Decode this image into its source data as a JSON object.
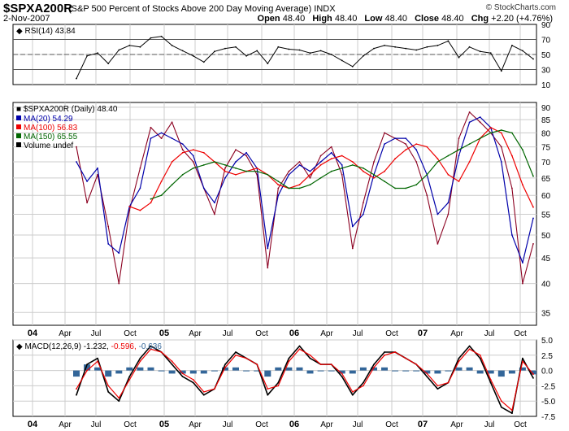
{
  "header": {
    "symbol": "$SPXA200R",
    "description": "(S&P 500 Percent of Stocks Above 200 Day Moving Average) INDX",
    "brand": "© StockCharts.com",
    "date": "2-Nov-2007",
    "open_label": "Open",
    "open": "48.40",
    "high_label": "High",
    "high": "48.40",
    "low_label": "Low",
    "low": "48.40",
    "close_label": "Close",
    "close": "48.40",
    "chg_label": "Chg",
    "chg": "+2.20 (+4.76%)"
  },
  "colors": {
    "price": "#8b0020",
    "ma20": "#0000aa",
    "ma100": "#ee0000",
    "ma150": "#006600",
    "rsi": "#000000",
    "macd_line": "#000000",
    "macd_signal": "#ee0000",
    "histogram": "#336699",
    "grid": "#cccccc"
  },
  "chart_data": [
    {
      "type": "line",
      "name": "rsi_panel",
      "title": "RSI(14) 43.84",
      "ylim": [
        10,
        90
      ],
      "yticks": [
        10,
        30,
        50,
        70,
        90
      ],
      "reference_lines": [
        30,
        50,
        70
      ],
      "series": [
        {
          "name": "RSI(14)",
          "x": [
            "2004-04",
            "2004-05",
            "2004-06",
            "2004-07",
            "2004-08",
            "2004-09",
            "2004-10",
            "2004-11",
            "2004-12",
            "2005-01",
            "2005-02",
            "2005-03",
            "2005-04",
            "2005-05",
            "2005-06",
            "2005-07",
            "2005-08",
            "2005-09",
            "2005-10",
            "2005-11",
            "2005-12",
            "2006-01",
            "2006-02",
            "2006-03",
            "2006-04",
            "2006-05",
            "2006-06",
            "2006-07",
            "2006-08",
            "2006-09",
            "2006-10",
            "2006-11",
            "2006-12",
            "2007-01",
            "2007-02",
            "2007-03",
            "2007-04",
            "2007-05",
            "2007-06",
            "2007-07",
            "2007-08",
            "2007-09",
            "2007-10",
            "2007-11"
          ],
          "values": [
            18,
            48,
            52,
            38,
            56,
            62,
            60,
            72,
            74,
            62,
            55,
            48,
            40,
            54,
            58,
            60,
            48,
            55,
            38,
            60,
            57,
            56,
            52,
            55,
            50,
            42,
            34,
            48,
            58,
            62,
            60,
            58,
            56,
            60,
            62,
            68,
            46,
            60,
            54,
            52,
            28,
            62,
            55,
            44
          ]
        }
      ]
    },
    {
      "type": "line",
      "name": "price_panel",
      "title": "$SPXA200R (Daily) 48.40",
      "ylim": [
        33,
        92
      ],
      "yscale": "log",
      "yticks": [
        35,
        40,
        45,
        50,
        55,
        60,
        65,
        70,
        75,
        80,
        85,
        90
      ],
      "legend": [
        "MA(20) 54.29",
        "MA(100) 56.83",
        "MA(150) 65.55",
        "Volume undef"
      ],
      "series": [
        {
          "name": "$SPXA200R",
          "x": [
            "2004-04",
            "2004-05",
            "2004-06",
            "2004-07",
            "2004-08",
            "2004-09",
            "2004-10",
            "2004-11",
            "2004-12",
            "2005-01",
            "2005-02",
            "2005-03",
            "2005-04",
            "2005-05",
            "2005-06",
            "2005-07",
            "2005-08",
            "2005-09",
            "2005-10",
            "2005-11",
            "2005-12",
            "2006-01",
            "2006-02",
            "2006-03",
            "2006-04",
            "2006-05",
            "2006-06",
            "2006-07",
            "2006-08",
            "2006-09",
            "2006-10",
            "2006-11",
            "2006-12",
            "2007-01",
            "2007-02",
            "2007-03",
            "2007-04",
            "2007-05",
            "2007-06",
            "2007-07",
            "2007-08",
            "2007-09",
            "2007-10",
            "2007-11"
          ],
          "values": [
            75,
            58,
            66,
            52,
            40,
            56,
            68,
            82,
            78,
            84,
            74,
            70,
            62,
            55,
            68,
            74,
            72,
            66,
            43,
            62,
            67,
            70,
            65,
            72,
            75,
            66,
            47,
            58,
            70,
            80,
            78,
            76,
            70,
            60,
            48,
            55,
            78,
            88,
            84,
            80,
            75,
            62,
            40,
            48
          ]
        },
        {
          "name": "MA(20)",
          "x": [
            "2004-04",
            "2004-05",
            "2004-06",
            "2004-07",
            "2004-08",
            "2004-09",
            "2004-10",
            "2004-11",
            "2004-12",
            "2005-01",
            "2005-02",
            "2005-03",
            "2005-04",
            "2005-05",
            "2005-06",
            "2005-07",
            "2005-08",
            "2005-09",
            "2005-10",
            "2005-11",
            "2005-12",
            "2006-01",
            "2006-02",
            "2006-03",
            "2006-04",
            "2006-05",
            "2006-06",
            "2006-07",
            "2006-08",
            "2006-09",
            "2006-10",
            "2006-11",
            "2006-12",
            "2007-01",
            "2007-02",
            "2007-03",
            "2007-04",
            "2007-05",
            "2007-06",
            "2007-07",
            "2007-08",
            "2007-09",
            "2007-10",
            "2007-11"
          ],
          "values": [
            70,
            64,
            68,
            48,
            46,
            57,
            62,
            78,
            80,
            78,
            76,
            72,
            62,
            58,
            65,
            70,
            73,
            68,
            47,
            60,
            66,
            69,
            67,
            70,
            73,
            69,
            52,
            55,
            66,
            76,
            78,
            78,
            74,
            66,
            55,
            58,
            72,
            84,
            86,
            82,
            70,
            50,
            44,
            54
          ]
        },
        {
          "name": "MA(100)",
          "x": [
            "2004-04",
            "2004-05",
            "2004-06",
            "2004-07",
            "2004-08",
            "2004-09",
            "2004-10",
            "2004-11",
            "2004-12",
            "2005-01",
            "2005-02",
            "2005-03",
            "2005-04",
            "2005-05",
            "2005-06",
            "2005-07",
            "2005-08",
            "2005-09",
            "2005-10",
            "2005-11",
            "2005-12",
            "2006-01",
            "2006-02",
            "2006-03",
            "2006-04",
            "2006-05",
            "2006-06",
            "2006-07",
            "2006-08",
            "2006-09",
            "2006-10",
            "2006-11",
            "2006-12",
            "2007-01",
            "2007-02",
            "2007-03",
            "2007-04",
            "2007-05",
            "2007-06",
            "2007-07",
            "2007-08",
            "2007-09",
            "2007-10",
            "2007-11"
          ],
          "values": [
            null,
            null,
            null,
            null,
            null,
            57,
            56,
            58,
            64,
            70,
            73,
            74,
            73,
            70,
            67,
            66,
            67,
            68,
            66,
            63,
            62,
            63,
            66,
            69,
            71,
            72,
            70,
            67,
            65,
            67,
            71,
            74,
            76,
            75,
            71,
            66,
            64,
            70,
            78,
            82,
            80,
            72,
            63,
            56.83
          ]
        },
        {
          "name": "MA(150)",
          "x": [
            "2004-04",
            "2004-05",
            "2004-06",
            "2004-07",
            "2004-08",
            "2004-09",
            "2004-10",
            "2004-11",
            "2004-12",
            "2005-01",
            "2005-02",
            "2005-03",
            "2005-04",
            "2005-05",
            "2005-06",
            "2005-07",
            "2005-08",
            "2005-09",
            "2005-10",
            "2005-11",
            "2005-12",
            "2006-01",
            "2006-02",
            "2006-03",
            "2006-04",
            "2006-05",
            "2006-06",
            "2006-07",
            "2006-08",
            "2006-09",
            "2006-10",
            "2006-11",
            "2006-12",
            "2007-01",
            "2007-02",
            "2007-03",
            "2007-04",
            "2007-05",
            "2007-06",
            "2007-07",
            "2007-08",
            "2007-09",
            "2007-10",
            "2007-11"
          ],
          "values": [
            null,
            null,
            null,
            null,
            null,
            null,
            null,
            59,
            60,
            63,
            66,
            68,
            69,
            70,
            69,
            68,
            67,
            67,
            66,
            64,
            62,
            62,
            63,
            65,
            67,
            68,
            69,
            68,
            66,
            64,
            62,
            62,
            63,
            66,
            70,
            72,
            74,
            76,
            78,
            80,
            81,
            80,
            74,
            65.55
          ]
        }
      ]
    },
    {
      "type": "line",
      "name": "macd_panel",
      "title": "MACD(12,26,9)",
      "title_values": [
        "-1.232",
        "-0.596",
        "-0.636"
      ],
      "ylim": [
        -7.5,
        5.0
      ],
      "yticks": [
        -7.5,
        -5.0,
        -2.5,
        0.0,
        2.5,
        5.0
      ],
      "series": [
        {
          "name": "MACD",
          "x": [
            "2004-04",
            "2004-05",
            "2004-06",
            "2004-07",
            "2004-08",
            "2004-09",
            "2004-10",
            "2004-11",
            "2004-12",
            "2005-01",
            "2005-02",
            "2005-03",
            "2005-04",
            "2005-05",
            "2005-06",
            "2005-07",
            "2005-08",
            "2005-09",
            "2005-10",
            "2005-11",
            "2005-12",
            "2006-01",
            "2006-02",
            "2006-03",
            "2006-04",
            "2006-05",
            "2006-06",
            "2006-07",
            "2006-08",
            "2006-09",
            "2006-10",
            "2006-11",
            "2006-12",
            "2007-01",
            "2007-02",
            "2007-03",
            "2007-04",
            "2007-05",
            "2007-06",
            "2007-07",
            "2007-08",
            "2007-09",
            "2007-10",
            "2007-11"
          ],
          "values": [
            -4,
            1,
            2,
            -3.5,
            -5,
            -1,
            2,
            4,
            3,
            1,
            -1,
            -2,
            -4,
            -3,
            1,
            3,
            2,
            1,
            -4,
            -2,
            2,
            4,
            2,
            1,
            1,
            -1,
            -4,
            -2,
            1,
            3,
            3,
            2,
            1,
            -1,
            -3,
            -2,
            2,
            4,
            2,
            -2,
            -6,
            -7,
            2,
            -1.232
          ]
        },
        {
          "name": "Signal",
          "x": [
            "2004-04",
            "2004-05",
            "2004-06",
            "2004-07",
            "2004-08",
            "2004-09",
            "2004-10",
            "2004-11",
            "2004-12",
            "2005-01",
            "2005-02",
            "2005-03",
            "2005-04",
            "2005-05",
            "2005-06",
            "2005-07",
            "2005-08",
            "2005-09",
            "2005-10",
            "2005-11",
            "2005-12",
            "2006-01",
            "2006-02",
            "2006-03",
            "2006-04",
            "2006-05",
            "2006-06",
            "2006-07",
            "2006-08",
            "2006-09",
            "2006-10",
            "2006-11",
            "2006-12",
            "2007-01",
            "2007-02",
            "2007-03",
            "2007-04",
            "2007-05",
            "2007-06",
            "2007-07",
            "2007-08",
            "2007-09",
            "2007-10",
            "2007-11"
          ],
          "values": [
            -3,
            0,
            1.5,
            -2.5,
            -4.5,
            -1.5,
            1.5,
            3.5,
            3,
            1.5,
            -0.5,
            -1.5,
            -3.5,
            -3,
            0.5,
            2.5,
            2,
            1,
            -3,
            -2.5,
            1.5,
            3.5,
            2.5,
            1,
            1,
            -0.5,
            -3.5,
            -2.5,
            0.5,
            2.5,
            3,
            2,
            1,
            -0.5,
            -2.5,
            -2,
            1.5,
            3.5,
            2.5,
            -1.5,
            -5,
            -6.5,
            1.5,
            -0.596
          ]
        }
      ]
    }
  ],
  "x_axis_labels": [
    "04",
    "Apr",
    "Jul",
    "Oct",
    "05",
    "Apr",
    "Jul",
    "Oct",
    "06",
    "Apr",
    "Jul",
    "Oct",
    "07",
    "Apr",
    "Jul",
    "Oct"
  ]
}
